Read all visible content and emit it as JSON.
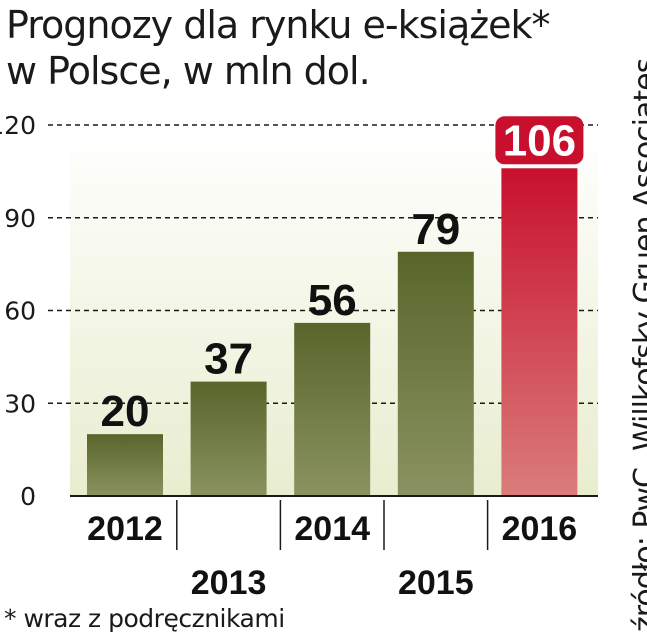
{
  "title_line1": "Prognozy dla rynku e-książek*",
  "title_line2": "w Polsce, w mln dol.",
  "source": "źródło: PwC, Willkofsky Gruen Associates",
  "footnote": "* wraz z podręcznikami",
  "colors": {
    "bar_normal": "#5e6a2e",
    "bar_highlight": "#c8102e",
    "plot_background": "#e9edcf",
    "label_highlight_bg": "#c8102e"
  },
  "chart_data": {
    "type": "bar",
    "title": "Prognozy dla rynku e-książek* w Polsce, w mln dol.",
    "categories": [
      "2012",
      "2013",
      "2014",
      "2015",
      "2016"
    ],
    "values": [
      20,
      37,
      56,
      79,
      106
    ],
    "data_labels": [
      "20",
      "37",
      "56",
      "79",
      "106"
    ],
    "highlight_index": 4,
    "ylim": [
      0,
      120
    ],
    "yticks": [
      0,
      30,
      60,
      90,
      120
    ],
    "grid": true,
    "xlabel": "",
    "ylabel": ""
  }
}
